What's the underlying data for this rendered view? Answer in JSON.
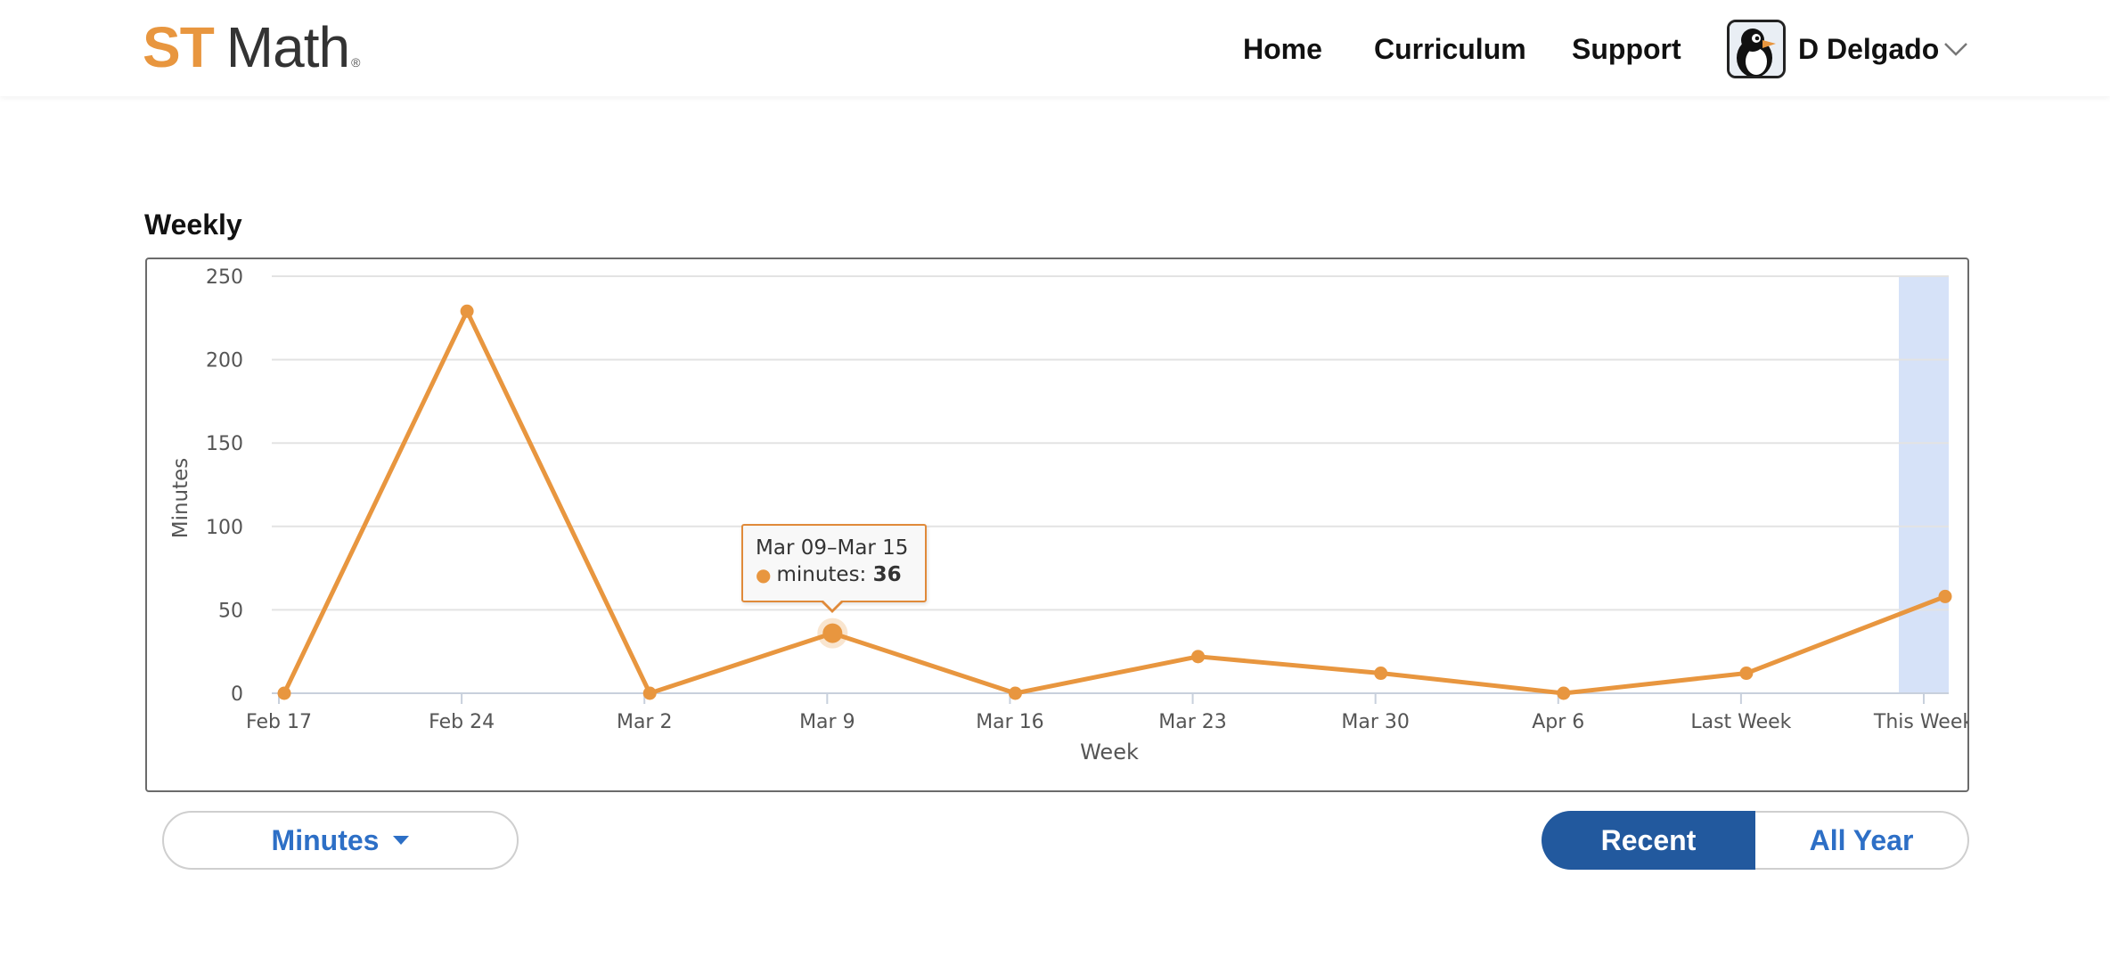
{
  "brand": {
    "logo_st": "ST",
    "logo_math": "Math",
    "logo_reg": "®",
    "accent_color": "#e8963f",
    "primary_color": "#22599e",
    "link_color": "#2d6fc6"
  },
  "nav": {
    "home": "Home",
    "curriculum": "Curriculum",
    "support": "Support"
  },
  "user": {
    "name": "D Delgado",
    "avatar_icon": "penguin-avatar-icon",
    "menu_icon": "chevron-down-icon"
  },
  "section": {
    "title": "Weekly"
  },
  "tooltip": {
    "range": "Mar 09–Mar 15",
    "series_label": "minutes: ",
    "value": "36"
  },
  "controls": {
    "metric_label": "Minutes",
    "recent_label": "Recent",
    "all_year_label": "All Year",
    "active_toggle": "Recent"
  },
  "chart_data": {
    "type": "line",
    "xlabel": "Week",
    "ylabel": "Minutes",
    "categories": [
      "Feb 17",
      "Feb 24",
      "Mar 2",
      "Mar 9",
      "Mar 16",
      "Mar 23",
      "Mar 30",
      "Apr 6",
      "Last Week",
      "This Week"
    ],
    "series": [
      {
        "values": [
          0,
          229,
          0,
          36,
          0,
          22,
          12,
          0,
          12,
          58
        ],
        "color": "#e8963f"
      }
    ],
    "ylim": [
      0,
      250
    ],
    "yticks": [
      0,
      50,
      100,
      150,
      200,
      250
    ],
    "grid": true,
    "highlighted_category": "This Week",
    "highlight_color": "#d6e2f8",
    "hovered_category": "Mar 9"
  }
}
